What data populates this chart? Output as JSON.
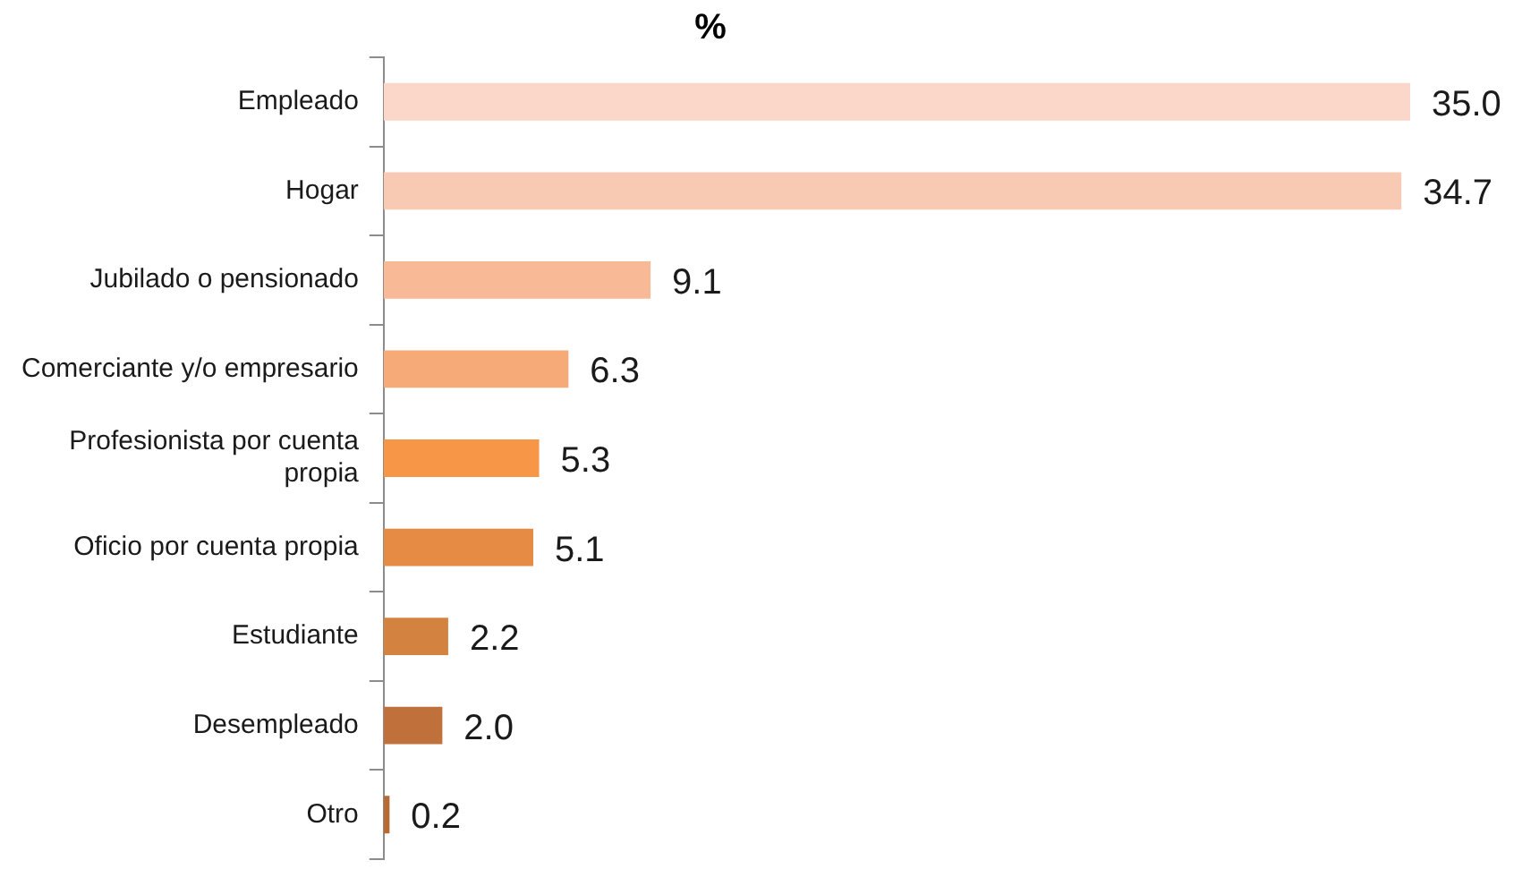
{
  "chart_data": {
    "type": "bar",
    "title": "%",
    "orientation": "horizontal",
    "categories": [
      "Empleado",
      "Hogar",
      "Jubilado o pensionado",
      "Comerciante y/o empresario",
      "Profesionista por cuenta propia",
      "Oficio por cuenta propia",
      "Estudiante",
      "Desempleado",
      "Otro"
    ],
    "values": [
      35.0,
      34.7,
      9.1,
      6.3,
      5.3,
      5.1,
      2.2,
      2.0,
      0.2
    ],
    "colors": [
      "#fbd7ca",
      "#f8c9b3",
      "#f8b996",
      "#f6aa78",
      "#f79646",
      "#e58b43",
      "#d4823f",
      "#c0703a",
      "#b86a35"
    ],
    "value_labels": [
      "35.0",
      "34.7",
      "9.1",
      "6.3",
      "5.3",
      "5.1",
      "2.2",
      "2.0",
      "0.2"
    ],
    "legend": false
  }
}
